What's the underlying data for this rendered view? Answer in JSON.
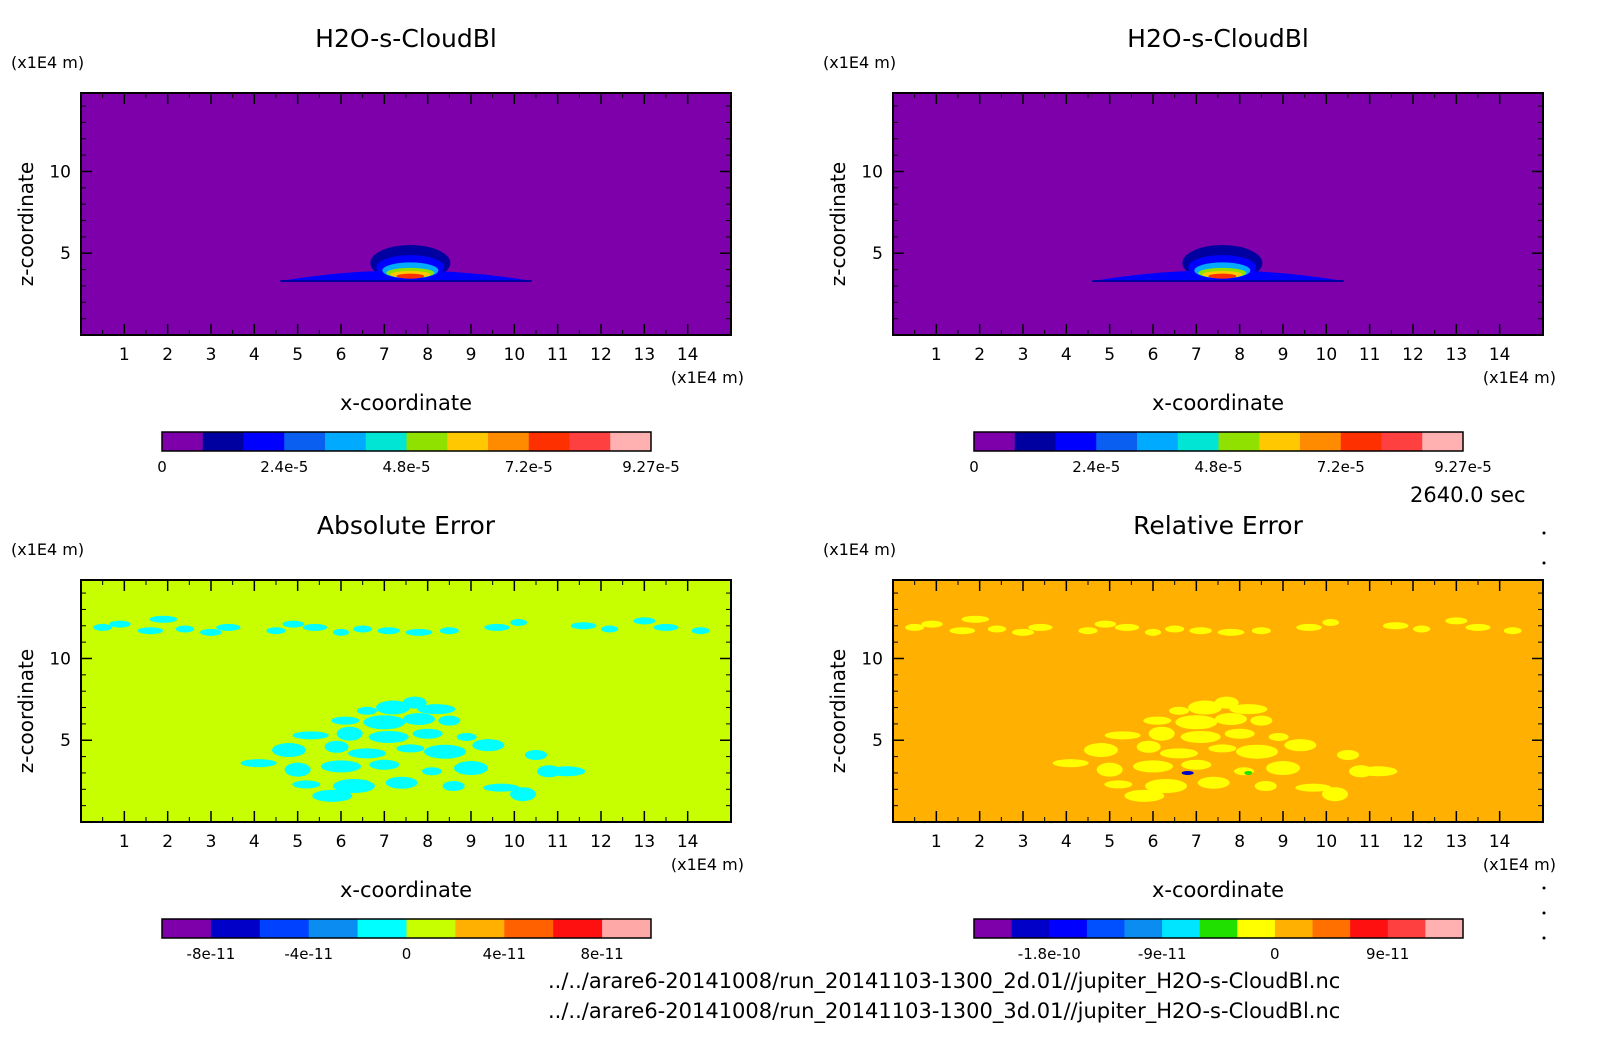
{
  "chart_data": [
    {
      "type": "heatmap",
      "title": "H2O-s-CloudBl",
      "xlabel": "x-coordinate",
      "ylabel": "z-coordinate",
      "x_unit": "(x1E4 m)",
      "z_unit": "(x1E4 m)",
      "xlim": [
        0,
        15
      ],
      "ylim": [
        0,
        14.8
      ],
      "x_ticks": [
        "1",
        "2",
        "3",
        "4",
        "5",
        "6",
        "7",
        "8",
        "9",
        "10",
        "11",
        "12",
        "13",
        "14"
      ],
      "y_ticks": [
        "5",
        "10"
      ],
      "colorbar": {
        "colors": [
          "#7d00aa",
          "#0000a0",
          "#0000ff",
          "#0a5ff0",
          "#00aaff",
          "#00e5d4",
          "#90e000",
          "#ffc800",
          "#ff8c00",
          "#ff3000",
          "#ff4040",
          "#ffb0b0"
        ],
        "labels": [
          "0",
          "2.4e-5",
          "4.8e-5",
          "7.2e-5",
          "9.27e-5"
        ]
      },
      "background_color": "#7d00aa"
    },
    {
      "type": "heatmap",
      "title": "H2O-s-CloudBl",
      "xlabel": "x-coordinate",
      "ylabel": "z-coordinate",
      "x_unit": "(x1E4 m)",
      "z_unit": "(x1E4 m)",
      "xlim": [
        0,
        15
      ],
      "ylim": [
        0,
        14.8
      ],
      "x_ticks": [
        "1",
        "2",
        "3",
        "4",
        "5",
        "6",
        "7",
        "8",
        "9",
        "10",
        "11",
        "12",
        "13",
        "14"
      ],
      "y_ticks": [
        "5",
        "10"
      ],
      "colorbar": {
        "colors": [
          "#7d00aa",
          "#0000a0",
          "#0000ff",
          "#0a5ff0",
          "#00aaff",
          "#00e5d4",
          "#90e000",
          "#ffc800",
          "#ff8c00",
          "#ff3000",
          "#ff4040",
          "#ffb0b0"
        ],
        "labels": [
          "0",
          "2.4e-5",
          "4.8e-5",
          "7.2e-5",
          "9.27e-5"
        ]
      },
      "background_color": "#7d00aa"
    },
    {
      "type": "heatmap",
      "title": "Absolute Error",
      "xlabel": "x-coordinate",
      "ylabel": "z-coordinate",
      "x_unit": "(x1E4 m)",
      "z_unit": "(x1E4 m)",
      "xlim": [
        0,
        15
      ],
      "ylim": [
        0,
        14.8
      ],
      "x_ticks": [
        "1",
        "2",
        "3",
        "4",
        "5",
        "6",
        "7",
        "8",
        "9",
        "10",
        "11",
        "12",
        "13",
        "14"
      ],
      "y_ticks": [
        "5",
        "10"
      ],
      "colorbar": {
        "colors": [
          "#7d00aa",
          "#0000c8",
          "#0040ff",
          "#0a8cf0",
          "#00ffff",
          "#c8ff00",
          "#ffb000",
          "#ff6000",
          "#ff1010",
          "#ffa8a8"
        ],
        "labels": [
          "-8e-11",
          "-4e-11",
          "0",
          "4e-11",
          "8e-11"
        ]
      },
      "background_color": "#c8ff00",
      "patch_color": "#00ffff"
    },
    {
      "type": "heatmap",
      "title": "Relative Error",
      "xlabel": "x-coordinate",
      "ylabel": "z-coordinate",
      "x_unit": "(x1E4 m)",
      "z_unit": "(x1E4 m)",
      "xlim": [
        0,
        15
      ],
      "ylim": [
        0,
        14.8
      ],
      "x_ticks": [
        "1",
        "2",
        "3",
        "4",
        "5",
        "6",
        "7",
        "8",
        "9",
        "10",
        "11",
        "12",
        "13",
        "14"
      ],
      "y_ticks": [
        "5",
        "10"
      ],
      "colorbar": {
        "colors": [
          "#7d00aa",
          "#0000c8",
          "#0000ff",
          "#0050ff",
          "#0a8cf0",
          "#00e5ff",
          "#20e000",
          "#ffff00",
          "#ffb000",
          "#ff7000",
          "#ff1010",
          "#ff4040",
          "#ffb0b0"
        ],
        "labels": [
          "-1.8e-10",
          "-9e-11",
          "0",
          "9e-11"
        ]
      },
      "background_color": "#ffb000",
      "patch_color": "#ffff00"
    }
  ],
  "time_label": "2640.0 sec",
  "files": [
    "../../arare6-20141008/run_20141103-1300_2d.01//jupiter_H2O-s-CloudBl.nc",
    "../../arare6-20141008/run_20141103-1300_3d.01//jupiter_H2O-s-CloudBl.nc"
  ]
}
